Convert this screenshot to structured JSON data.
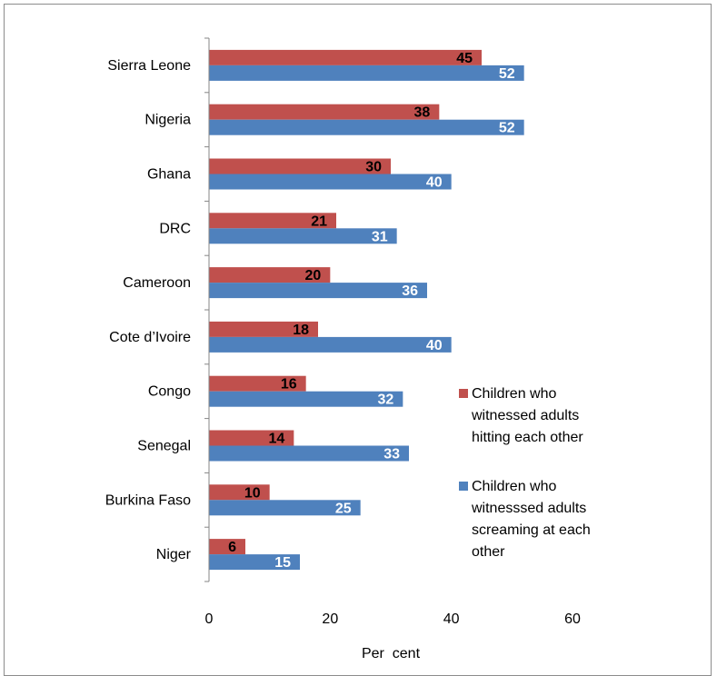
{
  "chart_data": {
    "type": "bar",
    "orientation": "horizontal",
    "categories": [
      "Sierra Leone",
      "Nigeria",
      "Ghana",
      "DRC",
      "Cameroon",
      "Cote d’Ivoire",
      "Congo",
      "Senegal",
      "Burkina Faso",
      "Niger"
    ],
    "series": [
      {
        "name": [
          "Children who",
          "witnessed adults",
          "hitting each other"
        ],
        "color": "#c0504d",
        "label_color": "#000000",
        "values": [
          45,
          38,
          30,
          21,
          20,
          18,
          16,
          14,
          10,
          6
        ]
      },
      {
        "name": [
          "Children who",
          "witnesssed adults",
          "screaming at each",
          "other"
        ],
        "color": "#4f81bd",
        "label_color": "#ffffff",
        "values": [
          52,
          52,
          40,
          31,
          36,
          40,
          32,
          33,
          25,
          15
        ]
      }
    ],
    "xlabel": "Per  cent",
    "xlim": [
      0,
      60
    ],
    "xticks": [
      0,
      20,
      40,
      60
    ],
    "grid": false,
    "legend_position": "right"
  }
}
